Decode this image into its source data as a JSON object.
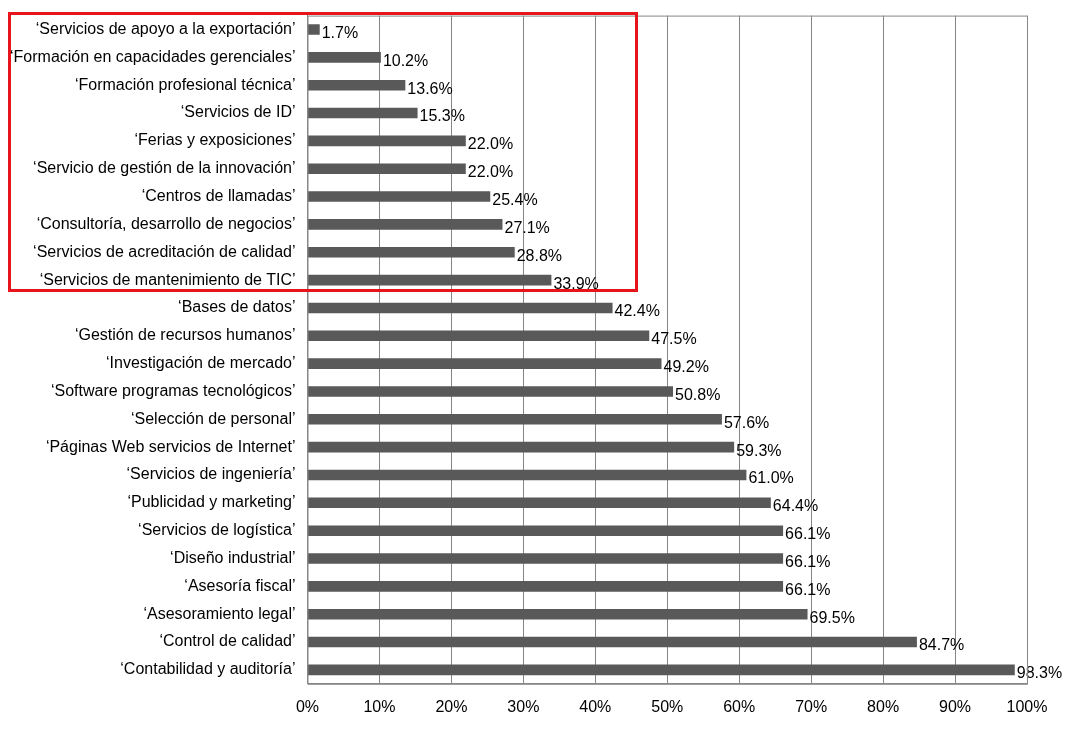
{
  "chart_data": {
    "type": "bar",
    "orientation": "horizontal",
    "categories": [
      "‘Servicios de apoyo a la exportación’",
      "‘Formación en capacidades gerenciales’",
      "‘Formación profesional técnica’",
      "‘Servicios de ID’",
      "‘Ferias y exposiciones’",
      "‘Servicio de gestión de la innovación’",
      "‘Centros de llamadas’",
      "‘Consultoría, desarrollo de negocios’",
      "‘Servicios de acreditación de calidad’",
      "‘Servicios de mantenimiento de TIC’",
      "‘Bases de datos’",
      "‘Gestión de recursos humanos’",
      "‘Investigación de mercado’",
      "‘Software programas tecnológicos’",
      "‘Selección de personal’",
      "‘Páginas Web servicios de Internet’",
      "‘Servicios de ingeniería’",
      "‘Publicidad y marketing’",
      "‘Servicios de logística’",
      "‘Diseño industrial’",
      "‘Asesoría fiscal’",
      "‘Asesoramiento legal’",
      "‘Control de calidad’",
      "‘Contabilidad y auditoría’"
    ],
    "values": [
      1.7,
      10.2,
      13.6,
      15.3,
      22.0,
      22.0,
      25.4,
      27.1,
      28.8,
      33.9,
      42.4,
      47.5,
      49.2,
      50.8,
      57.6,
      59.3,
      61.0,
      64.4,
      66.1,
      66.1,
      66.1,
      69.5,
      84.7,
      98.3
    ],
    "value_labels": [
      "1.7%",
      "10.2%",
      "13.6%",
      "15.3%",
      "22.0%",
      "22.0%",
      "25.4%",
      "27.1%",
      "28.8%",
      "33.9%",
      "42.4%",
      "47.5%",
      "49.2%",
      "50.8%",
      "57.6%",
      "59.3%",
      "61.0%",
      "64.4%",
      "66.1%",
      "66.1%",
      "66.1%",
      "69.5%",
      "84.7%",
      "98.3%"
    ],
    "color": "#595959",
    "xlim": [
      0,
      100
    ],
    "xticks": [
      {
        "value": 0,
        "label": "0%"
      },
      {
        "value": 10,
        "label": "10%"
      },
      {
        "value": 20,
        "label": "20%"
      },
      {
        "value": 30,
        "label": "30%"
      },
      {
        "value": 40,
        "label": "40%"
      },
      {
        "value": 50,
        "label": "50%"
      },
      {
        "value": 60,
        "label": "60%"
      },
      {
        "value": 70,
        "label": "70%"
      },
      {
        "value": 80,
        "label": "80%"
      },
      {
        "value": 90,
        "label": "90%"
      },
      {
        "value": 100,
        "label": "100%"
      }
    ],
    "grid": "x"
  }
}
